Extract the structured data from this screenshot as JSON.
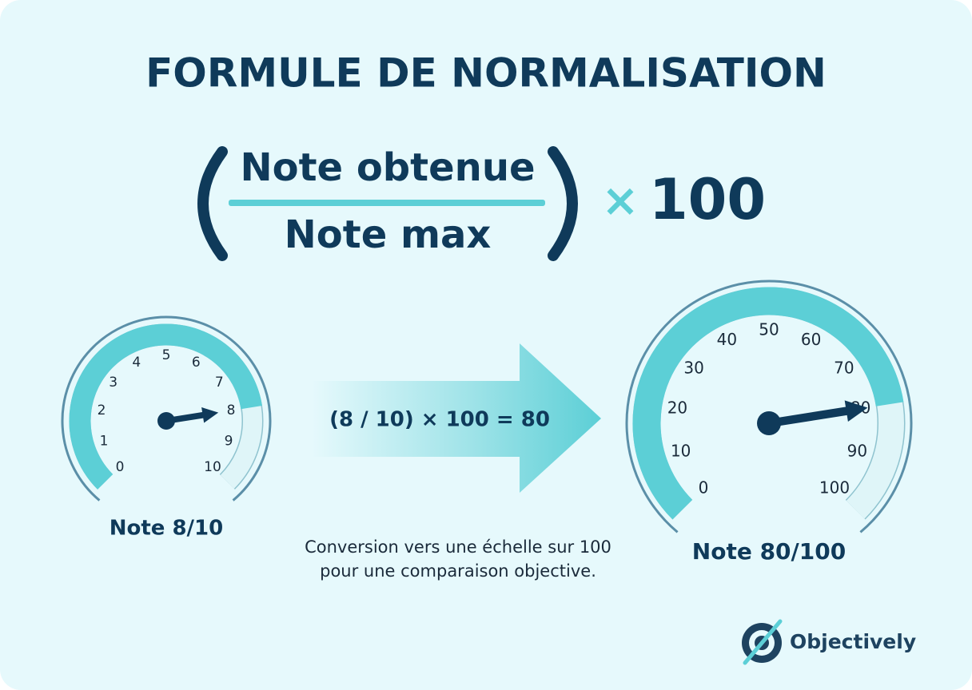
{
  "title": "FORMULE DE NORMALISATION",
  "formula": {
    "numerator": "Note obtenue",
    "denominator": "Note max",
    "operator": "×",
    "factor": "100"
  },
  "gauges": [
    {
      "ticks": [
        0,
        1,
        2,
        3,
        4,
        5,
        6,
        7,
        8,
        9,
        10
      ],
      "value": 8,
      "label": "Note 8/10"
    },
    {
      "ticks": [
        0,
        10,
        20,
        30,
        40,
        50,
        60,
        70,
        80,
        90,
        100
      ],
      "value": 80,
      "label": "Note 80/100"
    }
  ],
  "calculation": "(8 / 10) × 100 = 80",
  "caption": [
    "Conversion vers une échelle sur 100",
    "pour une comparaison objective."
  ],
  "brand": "Objectively"
}
